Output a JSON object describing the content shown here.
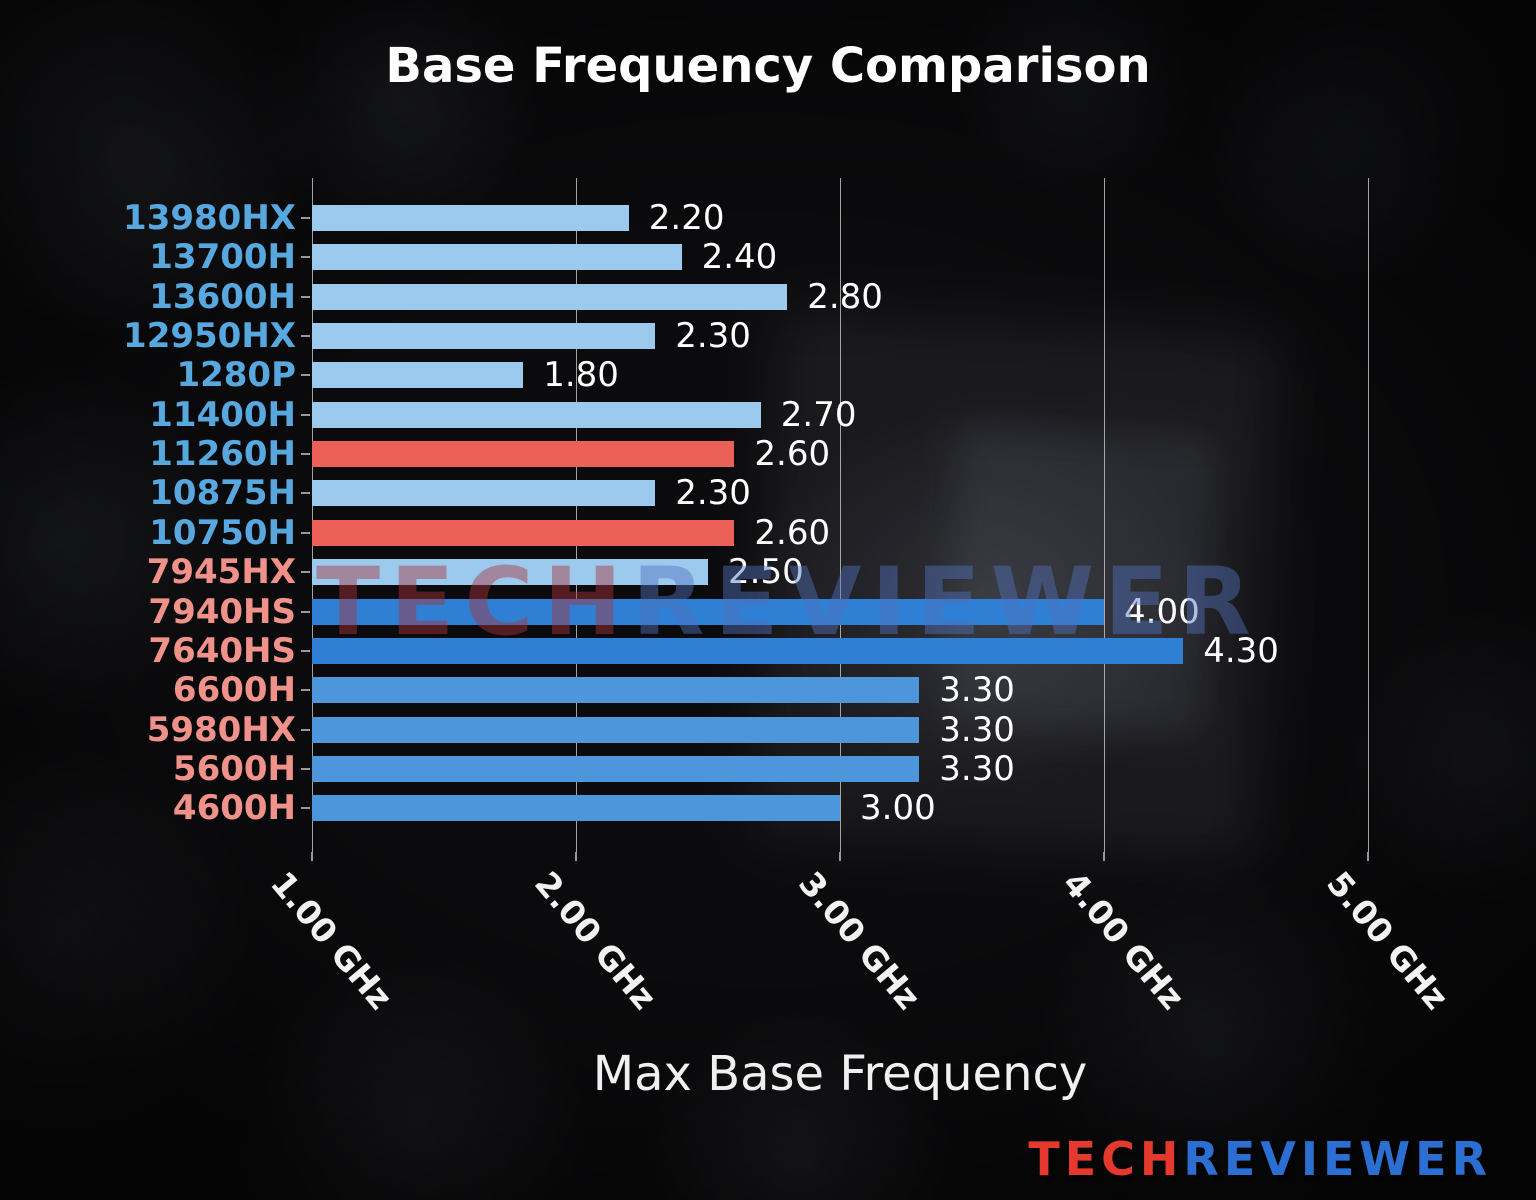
{
  "page": {
    "title": "Base Frequency Comparison",
    "xlabel": "Max Base Frequency",
    "watermark": {
      "part1": "TECH",
      "part2": "REVIEWER"
    },
    "logo": {
      "part1": "TECH",
      "part2": "REVIEWER"
    }
  },
  "colors": {
    "intel_label": "#58a8e0",
    "amd_label": "#f0928a",
    "bar_light_blue": "#9ccaee",
    "bar_blue": "#2f80d4",
    "bar_medium_blue": "#4e96dc",
    "bar_red": "#ec6157",
    "value_text": "#ffffff",
    "grid_line": "#bdbdbd",
    "tick_text": "#f2f2f2",
    "watermark_red": "rgba(170,52,58,0.45)",
    "watermark_blue": "rgba(82,112,188,0.45)",
    "logo_red": "#e6392e",
    "logo_blue": "#2c6fd2"
  },
  "chart_data": {
    "type": "bar",
    "orientation": "horizontal",
    "title": "Base Frequency Comparison",
    "xlabel": "Max Base Frequency",
    "unit": "GHz",
    "legend": "none",
    "grid": "vertical",
    "x_axis": {
      "range": [
        1.0,
        5.0
      ],
      "tick_values": [
        1,
        2,
        3,
        4,
        5
      ],
      "tick_labels": [
        "1.00 GHz",
        "2.00 GHz",
        "3.00 GHz",
        "4.00 GHz",
        "5.00 GHz"
      ]
    },
    "rows": [
      {
        "label": "13980HX",
        "value": 2.2,
        "value_label": "2.20",
        "vendor": "intel",
        "bar_color": "light_blue"
      },
      {
        "label": "13700H",
        "value": 2.4,
        "value_label": "2.40",
        "vendor": "intel",
        "bar_color": "light_blue"
      },
      {
        "label": "13600H",
        "value": 2.8,
        "value_label": "2.80",
        "vendor": "intel",
        "bar_color": "light_blue"
      },
      {
        "label": "12950HX",
        "value": 2.3,
        "value_label": "2.30",
        "vendor": "intel",
        "bar_color": "light_blue"
      },
      {
        "label": "1280P",
        "value": 1.8,
        "value_label": "1.80",
        "vendor": "intel",
        "bar_color": "light_blue"
      },
      {
        "label": "11400H",
        "value": 2.7,
        "value_label": "2.70",
        "vendor": "intel",
        "bar_color": "light_blue"
      },
      {
        "label": "11260H",
        "value": 2.6,
        "value_label": "2.60",
        "vendor": "intel",
        "bar_color": "red"
      },
      {
        "label": "10875H",
        "value": 2.3,
        "value_label": "2.30",
        "vendor": "intel",
        "bar_color": "light_blue"
      },
      {
        "label": "10750H",
        "value": 2.6,
        "value_label": "2.60",
        "vendor": "intel",
        "bar_color": "red"
      },
      {
        "label": "7945HX",
        "value": 2.5,
        "value_label": "2.50",
        "vendor": "amd",
        "bar_color": "light_blue"
      },
      {
        "label": "7940HS",
        "value": 4.0,
        "value_label": "4.00",
        "vendor": "amd",
        "bar_color": "blue"
      },
      {
        "label": "7640HS",
        "value": 4.3,
        "value_label": "4.30",
        "vendor": "amd",
        "bar_color": "blue"
      },
      {
        "label": "6600H",
        "value": 3.3,
        "value_label": "3.30",
        "vendor": "amd",
        "bar_color": "medium_blue"
      },
      {
        "label": "5980HX",
        "value": 3.3,
        "value_label": "3.30",
        "vendor": "amd",
        "bar_color": "medium_blue"
      },
      {
        "label": "5600H",
        "value": 3.3,
        "value_label": "3.30",
        "vendor": "amd",
        "bar_color": "medium_blue"
      },
      {
        "label": "4600H",
        "value": 3.0,
        "value_label": "3.00",
        "vendor": "amd",
        "bar_color": "medium_blue"
      }
    ]
  }
}
